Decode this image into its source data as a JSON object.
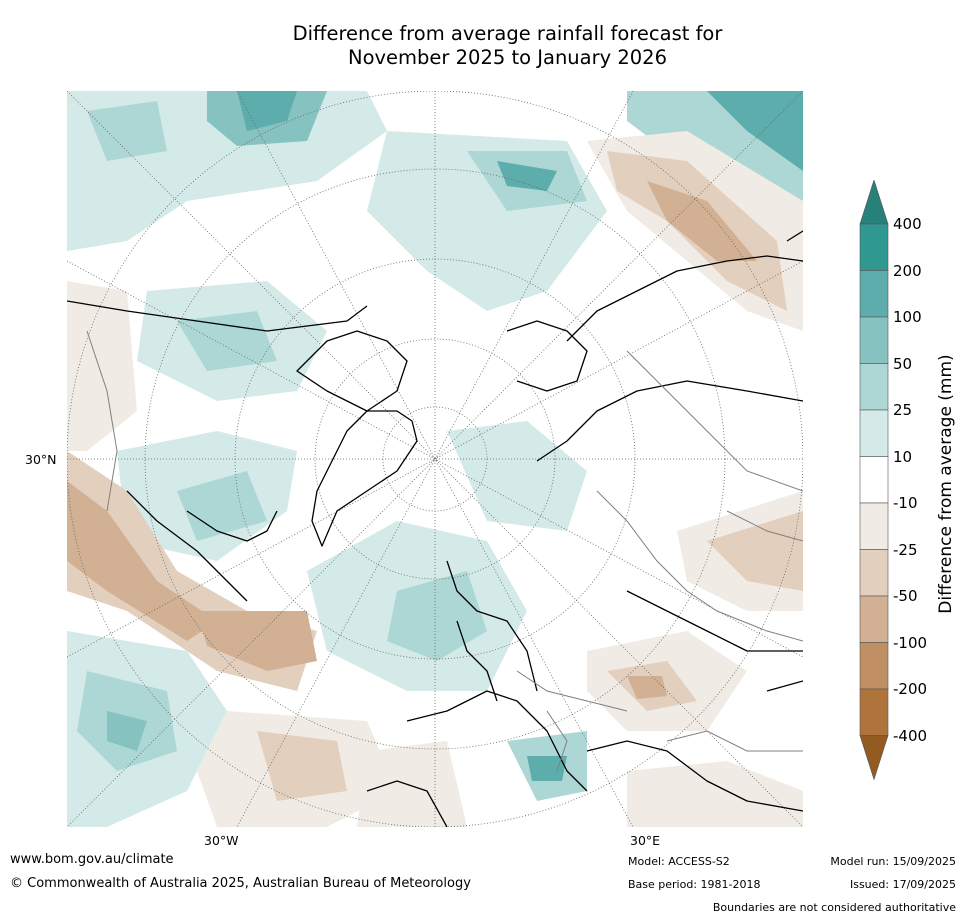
{
  "title": {
    "line1": "Difference from average rainfall forecast for",
    "line2": "November 2025 to January 2026"
  },
  "map": {
    "projection": "north-polar-stereographic",
    "lat_label": "30°N",
    "lon_labels": [
      "30°W",
      "30°E"
    ],
    "graticule": "dotted"
  },
  "colorbar": {
    "title": "Difference from average (mm)",
    "tick_labels": [
      "400",
      "200",
      "100",
      "50",
      "25",
      "10",
      "-10",
      "-25",
      "-50",
      "-100",
      "-200",
      "-400"
    ],
    "bins": [
      {
        "range": "> 400",
        "color": "#27807a"
      },
      {
        "range": "200 to 400",
        "color": "#2f9891"
      },
      {
        "range": "100 to 200",
        "color": "#5cadab"
      },
      {
        "range": "50 to 100",
        "color": "#85c2c0"
      },
      {
        "range": "25 to 50",
        "color": "#acd7d5"
      },
      {
        "range": "10 to 25",
        "color": "#d4eae8"
      },
      {
        "range": "-10 to 10",
        "color": "#ffffff"
      },
      {
        "range": "-25 to -10",
        "color": "#f1ebe5"
      },
      {
        "range": "-50 to -25",
        "color": "#e3cfbd"
      },
      {
        "range": "-100 to -50",
        "color": "#d1b093"
      },
      {
        "range": "-200 to -100",
        "color": "#c09064"
      },
      {
        "range": "-400 to -200",
        "color": "#ae743c"
      },
      {
        "range": "< -400",
        "color": "#935a22"
      }
    ]
  },
  "footer": {
    "website": "www.bom.gov.au/climate",
    "copyright": "© Commonwealth of Australia 2025, Australian Bureau of Meteorology",
    "model": "Model: ACCESS-S2",
    "base_period": "Base period: 1981-2018",
    "model_run": "Model run: 15/09/2025",
    "issued": "Issued: 17/09/2025",
    "boundaries_note": "Boundaries are not considered authoritative"
  }
}
